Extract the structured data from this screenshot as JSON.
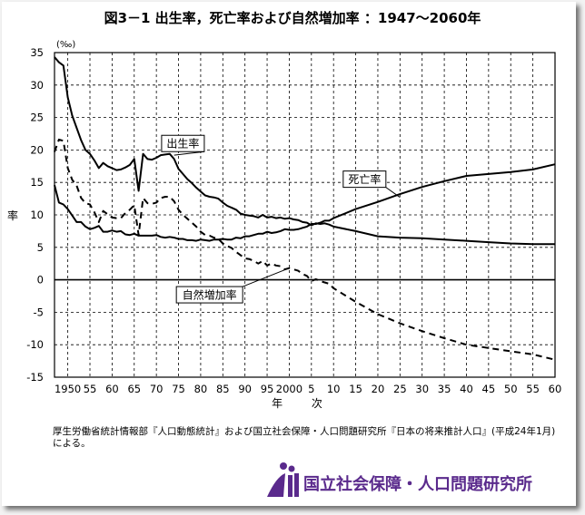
{
  "title": "図3－1 出生率，死亡率および自然増加率 ：1947～2060年",
  "source_note": "厚生労働省統計情報部『人口動態統計』および国立社会保障・人口問題研究所『日本の将来推計人口』(平成24年1月)による。",
  "logo_text": "国立社会保障・人口問題研究所",
  "colors": {
    "line": "#000000",
    "grid": "#000000",
    "logo": "#5a2a8c"
  },
  "chart_data": {
    "type": "line",
    "title": "図3－1 出生率，死亡率および自然増加率 ：1947～2060年",
    "ylabel": "率",
    "y_unit": "(‰)",
    "xlabel": "年 次",
    "ylim": [
      -15,
      35
    ],
    "xlim": [
      1947,
      2060
    ],
    "y_ticks": [
      "35",
      "30",
      "25",
      "20",
      "15",
      "10",
      "5",
      "0",
      "-5",
      "-10",
      "-15"
    ],
    "x_tick_labels": [
      "1950",
      "55",
      "60",
      "65",
      "70",
      "75",
      "80",
      "85",
      "90",
      "95",
      "2000",
      "5",
      "10",
      "15",
      "20",
      "25",
      "30",
      "35",
      "40",
      "45",
      "50",
      "55",
      "60"
    ],
    "grid": true,
    "series": [
      {
        "name": "出生率",
        "style": "solid",
        "points": [
          [
            1947,
            34.3
          ],
          [
            1948,
            33.5
          ],
          [
            1949,
            33.0
          ],
          [
            1950,
            28.1
          ],
          [
            1951,
            25.3
          ],
          [
            1952,
            23.4
          ],
          [
            1953,
            21.5
          ],
          [
            1954,
            20.0
          ],
          [
            1955,
            19.4
          ],
          [
            1956,
            18.4
          ],
          [
            1957,
            17.2
          ],
          [
            1958,
            18.0
          ],
          [
            1959,
            17.5
          ],
          [
            1960,
            17.2
          ],
          [
            1961,
            16.9
          ],
          [
            1962,
            17.0
          ],
          [
            1963,
            17.3
          ],
          [
            1964,
            17.7
          ],
          [
            1965,
            18.6
          ],
          [
            1966,
            13.7
          ],
          [
            1967,
            19.4
          ],
          [
            1968,
            18.6
          ],
          [
            1969,
            18.5
          ],
          [
            1970,
            18.8
          ],
          [
            1971,
            19.2
          ],
          [
            1972,
            19.3
          ],
          [
            1973,
            19.4
          ],
          [
            1974,
            18.6
          ],
          [
            1975,
            17.1
          ],
          [
            1976,
            16.3
          ],
          [
            1977,
            15.5
          ],
          [
            1978,
            14.9
          ],
          [
            1979,
            14.2
          ],
          [
            1980,
            13.6
          ],
          [
            1981,
            13.0
          ],
          [
            1982,
            12.8
          ],
          [
            1983,
            12.7
          ],
          [
            1984,
            12.5
          ],
          [
            1985,
            11.9
          ],
          [
            1986,
            11.4
          ],
          [
            1987,
            11.1
          ],
          [
            1988,
            10.8
          ],
          [
            1989,
            10.2
          ],
          [
            1990,
            10.0
          ],
          [
            1991,
            9.9
          ],
          [
            1992,
            9.8
          ],
          [
            1993,
            9.6
          ],
          [
            1994,
            10.0
          ],
          [
            1995,
            9.6
          ],
          [
            1996,
            9.7
          ],
          [
            1997,
            9.5
          ],
          [
            1998,
            9.6
          ],
          [
            1999,
            9.4
          ],
          [
            2000,
            9.5
          ],
          [
            2001,
            9.3
          ],
          [
            2002,
            9.2
          ],
          [
            2003,
            8.9
          ],
          [
            2004,
            8.8
          ],
          [
            2005,
            8.4
          ],
          [
            2006,
            8.7
          ],
          [
            2007,
            8.6
          ],
          [
            2008,
            8.7
          ],
          [
            2009,
            8.5
          ],
          [
            2010,
            8.2
          ],
          [
            2015,
            7.5
          ],
          [
            2020,
            6.7
          ],
          [
            2025,
            6.5
          ],
          [
            2030,
            6.4
          ],
          [
            2035,
            6.2
          ],
          [
            2040,
            6.0
          ],
          [
            2045,
            5.8
          ],
          [
            2050,
            5.6
          ],
          [
            2055,
            5.5
          ],
          [
            2060,
            5.5
          ]
        ]
      },
      {
        "name": "死亡率",
        "style": "solid",
        "points": [
          [
            1947,
            14.6
          ],
          [
            1948,
            11.9
          ],
          [
            1949,
            11.6
          ],
          [
            1950,
            10.9
          ],
          [
            1951,
            9.9
          ],
          [
            1952,
            8.9
          ],
          [
            1953,
            8.9
          ],
          [
            1954,
            8.2
          ],
          [
            1955,
            7.8
          ],
          [
            1956,
            8.0
          ],
          [
            1957,
            8.3
          ],
          [
            1958,
            7.4
          ],
          [
            1959,
            7.4
          ],
          [
            1960,
            7.6
          ],
          [
            1961,
            7.4
          ],
          [
            1962,
            7.5
          ],
          [
            1963,
            7.0
          ],
          [
            1964,
            6.9
          ],
          [
            1965,
            7.1
          ],
          [
            1966,
            6.8
          ],
          [
            1967,
            6.8
          ],
          [
            1968,
            6.8
          ],
          [
            1969,
            6.8
          ],
          [
            1970,
            6.9
          ],
          [
            1971,
            6.6
          ],
          [
            1972,
            6.5
          ],
          [
            1973,
            6.6
          ],
          [
            1974,
            6.5
          ],
          [
            1975,
            6.3
          ],
          [
            1976,
            6.3
          ],
          [
            1977,
            6.1
          ],
          [
            1978,
            6.1
          ],
          [
            1979,
            6.0
          ],
          [
            1980,
            6.2
          ],
          [
            1981,
            6.1
          ],
          [
            1982,
            6.0
          ],
          [
            1983,
            6.2
          ],
          [
            1984,
            6.2
          ],
          [
            1985,
            6.3
          ],
          [
            1986,
            6.2
          ],
          [
            1987,
            6.2
          ],
          [
            1988,
            6.5
          ],
          [
            1989,
            6.4
          ],
          [
            1990,
            6.7
          ],
          [
            1991,
            6.7
          ],
          [
            1992,
            6.9
          ],
          [
            1993,
            7.1
          ],
          [
            1994,
            7.1
          ],
          [
            1995,
            7.4
          ],
          [
            1996,
            7.2
          ],
          [
            1997,
            7.3
          ],
          [
            1998,
            7.5
          ],
          [
            1999,
            7.8
          ],
          [
            2000,
            7.7
          ],
          [
            2001,
            7.7
          ],
          [
            2002,
            7.8
          ],
          [
            2003,
            8.0
          ],
          [
            2004,
            8.2
          ],
          [
            2005,
            8.6
          ],
          [
            2006,
            8.6
          ],
          [
            2007,
            8.8
          ],
          [
            2008,
            9.1
          ],
          [
            2009,
            9.1
          ],
          [
            2010,
            9.5
          ],
          [
            2015,
            10.9
          ],
          [
            2020,
            12.0
          ],
          [
            2025,
            13.2
          ],
          [
            2030,
            14.3
          ],
          [
            2035,
            15.2
          ],
          [
            2040,
            16.0
          ],
          [
            2045,
            16.3
          ],
          [
            2050,
            16.6
          ],
          [
            2055,
            17.0
          ],
          [
            2060,
            17.8
          ]
        ]
      },
      {
        "name": "自然増加率",
        "style": "dashed",
        "points": [
          [
            1947,
            19.7
          ],
          [
            1948,
            21.6
          ],
          [
            1949,
            21.4
          ],
          [
            1950,
            17.2
          ],
          [
            1951,
            15.4
          ],
          [
            1952,
            14.5
          ],
          [
            1953,
            12.6
          ],
          [
            1954,
            11.8
          ],
          [
            1955,
            11.6
          ],
          [
            1956,
            10.4
          ],
          [
            1957,
            8.9
          ],
          [
            1958,
            10.6
          ],
          [
            1959,
            10.1
          ],
          [
            1960,
            9.6
          ],
          [
            1961,
            9.5
          ],
          [
            1962,
            9.5
          ],
          [
            1963,
            10.3
          ],
          [
            1964,
            10.8
          ],
          [
            1965,
            11.5
          ],
          [
            1966,
            6.9
          ],
          [
            1967,
            12.6
          ],
          [
            1968,
            11.8
          ],
          [
            1969,
            11.7
          ],
          [
            1970,
            11.9
          ],
          [
            1971,
            12.6
          ],
          [
            1972,
            12.8
          ],
          [
            1973,
            12.8
          ],
          [
            1974,
            12.1
          ],
          [
            1975,
            10.8
          ],
          [
            1976,
            10.0
          ],
          [
            1977,
            9.4
          ],
          [
            1978,
            8.8
          ],
          [
            1979,
            8.2
          ],
          [
            1980,
            7.4
          ],
          [
            1981,
            6.9
          ],
          [
            1982,
            6.8
          ],
          [
            1983,
            6.5
          ],
          [
            1984,
            6.3
          ],
          [
            1985,
            5.6
          ],
          [
            1986,
            5.2
          ],
          [
            1987,
            4.9
          ],
          [
            1988,
            4.3
          ],
          [
            1989,
            3.8
          ],
          [
            1990,
            3.3
          ],
          [
            1991,
            3.2
          ],
          [
            1992,
            2.9
          ],
          [
            1993,
            2.5
          ],
          [
            1994,
            2.9
          ],
          [
            1995,
            2.2
          ],
          [
            1996,
            2.5
          ],
          [
            1997,
            2.2
          ],
          [
            1998,
            2.1
          ],
          [
            1999,
            1.6
          ],
          [
            2000,
            1.8
          ],
          [
            2001,
            1.6
          ],
          [
            2002,
            1.4
          ],
          [
            2003,
            0.9
          ],
          [
            2004,
            0.6
          ],
          [
            2005,
            -0.2
          ],
          [
            2006,
            0.1
          ],
          [
            2007,
            -0.2
          ],
          [
            2008,
            -0.4
          ],
          [
            2009,
            -0.6
          ],
          [
            2010,
            -1.3
          ],
          [
            2015,
            -3.4
          ],
          [
            2020,
            -5.3
          ],
          [
            2025,
            -6.7
          ],
          [
            2030,
            -7.9
          ],
          [
            2035,
            -9.0
          ],
          [
            2040,
            -10.0
          ],
          [
            2045,
            -10.5
          ],
          [
            2050,
            -11.0
          ],
          [
            2055,
            -11.5
          ],
          [
            2060,
            -12.3
          ]
        ]
      }
    ],
    "annotations": [
      {
        "text": "出生率",
        "series": "出生率",
        "anchor": [
          1974,
          19.2
        ],
        "label_at": [
          1976,
          21.0
        ]
      },
      {
        "text": "死亡率",
        "series": "死亡率",
        "anchor": [
          2025,
          12.7
        ],
        "label_at": [
          2017,
          15.5
        ]
      },
      {
        "text": "自然増加率",
        "series": "自然増加率",
        "anchor": [
          2000,
          1.8
        ],
        "label_at": [
          1982,
          -2.3
        ]
      }
    ]
  }
}
